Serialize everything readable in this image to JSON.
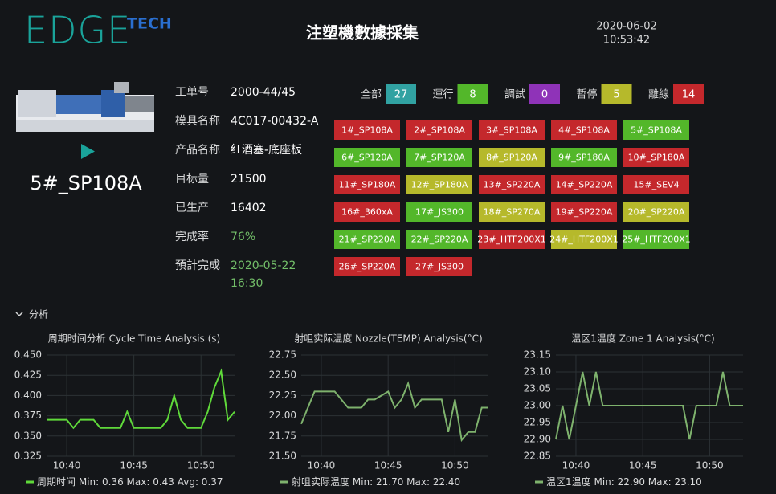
{
  "header": {
    "logo": "EDGE",
    "logo_suffix": "TECH",
    "title": "注塑機數據採集",
    "date": "2020-06-02",
    "time": "10:53:42"
  },
  "machine": {
    "name": "5#_SP108A"
  },
  "info": [
    {
      "label": "工单号",
      "value": "2000-44/45"
    },
    {
      "label": "模具名称",
      "value": "4C017-00432-A"
    },
    {
      "label": "产品名称",
      "value": "红酒塞-底座板"
    },
    {
      "label": "目标量",
      "value": "21500"
    },
    {
      "label": "已生产",
      "value": "16402"
    },
    {
      "label": "完成率",
      "value": "76%",
      "color": "#73bf69"
    },
    {
      "label": "預計完成",
      "value": [
        "2020-05-22",
        "16:30"
      ],
      "color": "#73bf69"
    }
  ],
  "status": [
    {
      "label": "全部",
      "count": 27,
      "color": "#31a2a2"
    },
    {
      "label": "運行",
      "count": 8,
      "color": "#53b72a"
    },
    {
      "label": "調試",
      "count": 0,
      "color": "#8f33b8"
    },
    {
      "label": "暫停",
      "count": 5,
      "color": "#b6b92b"
    },
    {
      "label": "離線",
      "count": 14,
      "color": "#c4282c"
    }
  ],
  "machines": [
    {
      "label": "1#_SP108A",
      "color": "#c4282c"
    },
    {
      "label": "2#_SP108A",
      "color": "#c4282c"
    },
    {
      "label": "3#_SP108A",
      "color": "#c4282c"
    },
    {
      "label": "4#_SP108A",
      "color": "#c4282c"
    },
    {
      "label": "5#_SP108A",
      "color": "#53b72a"
    },
    {
      "label": "6#_SP120A",
      "color": "#53b72a"
    },
    {
      "label": "7#_SP120A",
      "color": "#53b72a"
    },
    {
      "label": "8#_SP120A",
      "color": "#b6b92b"
    },
    {
      "label": "9#_SP180A",
      "color": "#53b72a"
    },
    {
      "label": "10#_SP180A",
      "color": "#c4282c"
    },
    {
      "label": "11#_SP180A",
      "color": "#c4282c"
    },
    {
      "label": "12#_SP180A",
      "color": "#b6b92b"
    },
    {
      "label": "13#_SP220A",
      "color": "#c4282c"
    },
    {
      "label": "14#_SP220A",
      "color": "#c4282c"
    },
    {
      "label": "15#_SEV4",
      "color": "#c4282c"
    },
    {
      "label": "16#_360xA",
      "color": "#c4282c"
    },
    {
      "label": "17#_JS300",
      "color": "#53b72a"
    },
    {
      "label": "18#_SP270A",
      "color": "#b6b92b"
    },
    {
      "label": "19#_SP220A",
      "color": "#c4282c"
    },
    {
      "label": "20#_SP220A",
      "color": "#b6b92b"
    },
    {
      "label": "21#_SP220A",
      "color": "#53b72a"
    },
    {
      "label": "22#_SP220A",
      "color": "#53b72a"
    },
    {
      "label": "23#_HTF200X1",
      "color": "#c4282c"
    },
    {
      "label": "24#_HTF200X1",
      "color": "#b6b92b"
    },
    {
      "label": "25#_HTF200X1",
      "color": "#53b72a"
    },
    {
      "label": "26#_SP220A",
      "color": "#c4282c"
    },
    {
      "label": "27#_JS300",
      "color": "#c4282c"
    }
  ],
  "section": "分析",
  "chart_data": [
    {
      "type": "line",
      "title": "周期时间分析 Cycle Time Analysis (s)",
      "categories": [
        null,
        null,
        null,
        "10:40",
        null,
        null,
        null,
        null,
        null,
        null,
        null,
        null,
        null,
        "10:45",
        null,
        null,
        null,
        null,
        null,
        null,
        null,
        null,
        null,
        "10:50",
        null,
        null,
        null,
        null,
        null
      ],
      "series": [
        {
          "name": "周期时间",
          "color": "#5fd93a",
          "values": [
            0.37,
            0.37,
            0.37,
            0.37,
            0.36,
            0.37,
            0.37,
            0.37,
            0.36,
            0.36,
            0.36,
            0.36,
            0.38,
            0.36,
            0.36,
            0.36,
            0.36,
            0.36,
            0.37,
            0.4,
            0.37,
            0.36,
            0.36,
            0.36,
            0.38,
            0.41,
            0.43,
            0.37,
            0.38
          ]
        }
      ],
      "legend_stats": "Min: 0.36 Max: 0.43 Avg: 0.37",
      "ylim": [
        0.325,
        0.45
      ],
      "yticks": [
        0.325,
        {
          "value": 0.35,
          "label": "0.350"
        },
        0.375,
        {
          "value": 0.4,
          "label": "0.400"
        },
        0.425,
        {
          "value": 0.45,
          "label": "0.450"
        }
      ],
      "grid": true
    },
    {
      "type": "line",
      "title": "射咀实际温度 Nozzle(TEMP) Analysis(°C)",
      "categories": [
        null,
        null,
        null,
        "10:40",
        null,
        null,
        null,
        null,
        null,
        null,
        null,
        null,
        null,
        "10:45",
        null,
        null,
        null,
        null,
        null,
        null,
        null,
        null,
        null,
        "10:50",
        null,
        null,
        null,
        null,
        null
      ],
      "series": [
        {
          "name": "射咀实际温度",
          "color": "#7eb26d",
          "values": [
            21.9,
            22.1,
            22.3,
            22.3,
            22.3,
            22.3,
            22.2,
            22.1,
            22.1,
            22.1,
            22.2,
            22.2,
            22.25,
            22.3,
            22.1,
            22.2,
            22.4,
            22.1,
            22.2,
            22.2,
            22.2,
            22.2,
            21.8,
            22.2,
            21.7,
            21.8,
            21.8,
            22.1,
            22.1
          ]
        }
      ],
      "legend_stats": "Min: 21.70 Max: 22.40",
      "ylim": [
        21.5,
        22.75
      ],
      "yticks": [
        {
          "value": 21.5,
          "label": "21.50"
        },
        21.75,
        {
          "value": 22,
          "label": "22.00"
        },
        22.25,
        {
          "value": 22.5,
          "label": "22.50"
        },
        22.75
      ],
      "grid": true
    },
    {
      "type": "line",
      "title": "温区1温度 Zone 1 Analysis(°C)",
      "categories": [
        null,
        null,
        null,
        "10:40",
        null,
        null,
        null,
        null,
        null,
        null,
        null,
        null,
        null,
        "10:45",
        null,
        null,
        null,
        null,
        null,
        null,
        null,
        null,
        null,
        "10:50",
        null,
        null,
        null,
        null,
        null
      ],
      "series": [
        {
          "name": "温区1温度",
          "color": "#7eb26d",
          "values": [
            22.9,
            23.0,
            22.9,
            23.0,
            23.1,
            23.0,
            23.1,
            23.0,
            23.0,
            23.0,
            23.0,
            23.0,
            23.0,
            23.0,
            23.0,
            23.0,
            23.0,
            23.0,
            23.0,
            23.0,
            22.9,
            23.0,
            23.0,
            23.0,
            23.0,
            23.1,
            23.0,
            23.0,
            23.0
          ]
        }
      ],
      "legend_stats": "Min: 22.90 Max: 23.10",
      "ylim": [
        22.85,
        23.15
      ],
      "yticks": [
        22.85,
        {
          "value": 22.9,
          "label": "22.90"
        },
        22.95,
        {
          "value": 23,
          "label": "23.00"
        },
        23.05,
        {
          "value": 23.1,
          "label": "23.10"
        },
        23.15
      ],
      "grid": true
    }
  ]
}
